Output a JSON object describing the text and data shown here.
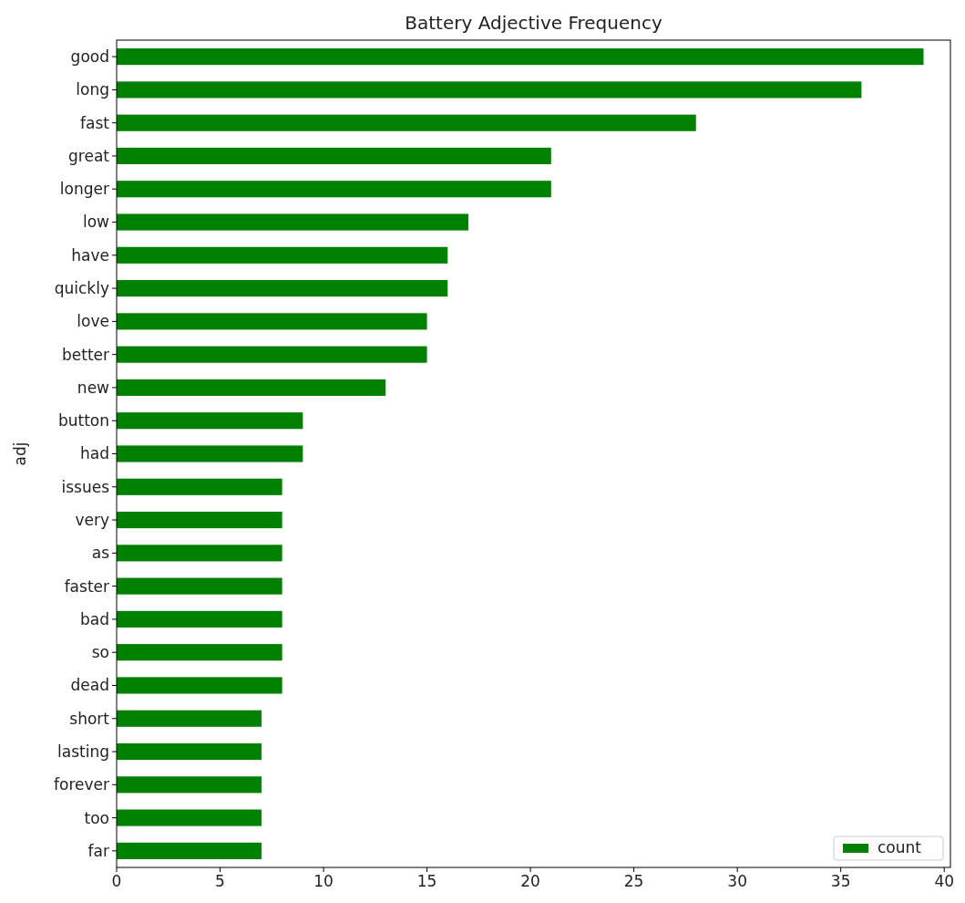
{
  "chart_data": {
    "type": "bar",
    "orientation": "horizontal",
    "title": "Battery Adjective Frequency",
    "ylabel": "adj",
    "categories": [
      "good",
      "long",
      "fast",
      "great",
      "longer",
      "low",
      "have",
      "quickly",
      "love",
      "better",
      "new",
      "button",
      "had",
      "issues",
      "very",
      "as",
      "faster",
      "bad",
      "so",
      "dead",
      "short",
      "lasting",
      "forever",
      "too",
      "far"
    ],
    "series": [
      {
        "name": "count",
        "color": "#008000",
        "values": [
          39,
          36,
          28,
          21,
          21,
          17,
          16,
          16,
          15,
          15,
          13,
          9,
          9,
          8,
          8,
          8,
          8,
          8,
          8,
          8,
          7,
          7,
          7,
          7,
          7
        ]
      }
    ],
    "xlim": [
      0,
      40.3
    ],
    "xticks": [
      0,
      5,
      10,
      15,
      20,
      25,
      30,
      35,
      40
    ],
    "legend": "bottom right",
    "grid": false
  }
}
